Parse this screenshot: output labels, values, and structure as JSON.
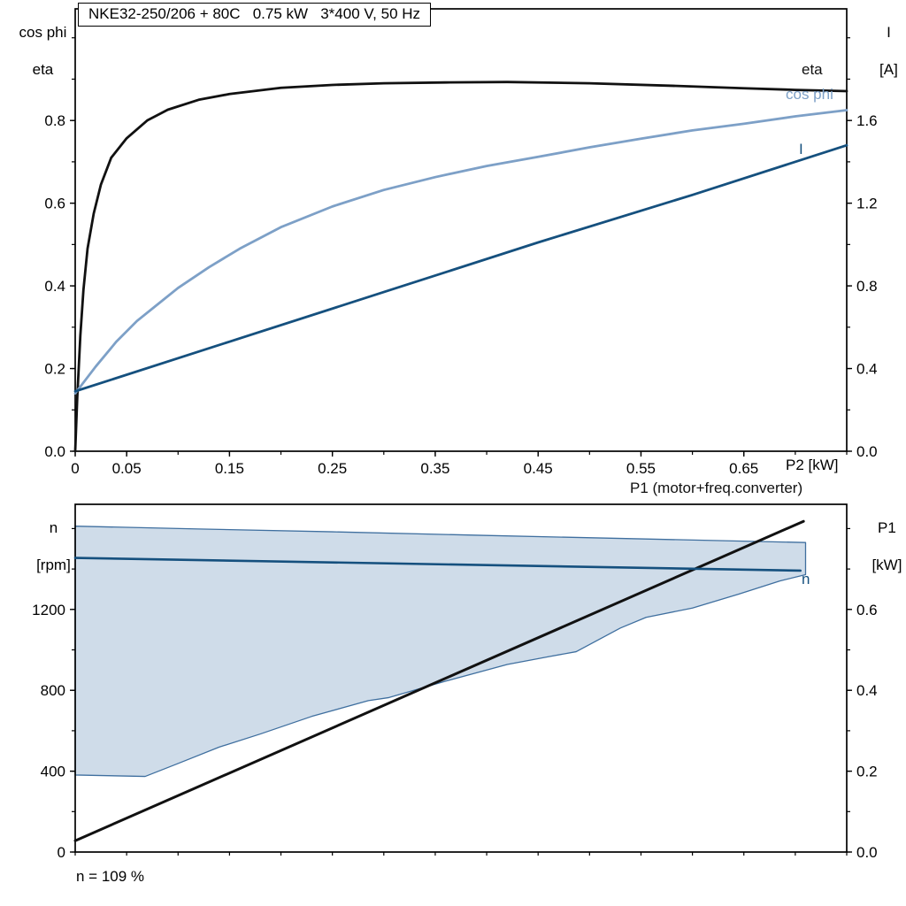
{
  "colors": {
    "black": "#111111",
    "dark_blue": "#15507e",
    "light_blue": "#7da0c7",
    "region_fill": "#cfdce9",
    "region_stroke": "#3f6f9f",
    "axis": "#000000",
    "background": "#ffffff"
  },
  "chart_data": [
    {
      "type": "line",
      "title": "NKE32-250/206 + 80C   0.75 kW   3*400 V, 50 Hz",
      "x_label": "P2 [kW]",
      "y_left_label": [
        "cos phi",
        "eta"
      ],
      "y_right_label": [
        "I",
        "[A]"
      ],
      "xlim": [
        0,
        0.75
      ],
      "ylim_left": [
        0,
        1.07
      ],
      "ylim_right": [
        0,
        2.14
      ],
      "x_minor_step": 0.05,
      "y_minor_left": 0.1,
      "y_minor_right": 0.2,
      "grid": false,
      "xticks": [
        {
          "v": 0,
          "label": "0"
        },
        {
          "v": 0.05,
          "label": "0.05"
        },
        {
          "v": 0.15,
          "label": "0.15"
        },
        {
          "v": 0.25,
          "label": "0.25"
        },
        {
          "v": 0.35,
          "label": "0.35"
        },
        {
          "v": 0.45,
          "label": "0.45"
        },
        {
          "v": 0.55,
          "label": "0.55"
        },
        {
          "v": 0.65,
          "label": "0.65"
        }
      ],
      "yticks_left": [
        {
          "v": 0,
          "label": "0.0"
        },
        {
          "v": 0.2,
          "label": "0.2"
        },
        {
          "v": 0.4,
          "label": "0.4"
        },
        {
          "v": 0.6,
          "label": "0.6"
        },
        {
          "v": 0.8,
          "label": "0.8"
        }
      ],
      "yticks_right": [
        {
          "v": 0,
          "label": "0.0"
        },
        {
          "v": 0.4,
          "label": "0.4"
        },
        {
          "v": 0.8,
          "label": "0.8"
        },
        {
          "v": 1.2,
          "label": "1.2"
        },
        {
          "v": 1.6,
          "label": "1.6"
        }
      ],
      "series": [
        {
          "name": "eta",
          "label": "eta",
          "axis": "left",
          "color": "#111111",
          "width": 2.8,
          "points": [
            [
              0,
              0
            ],
            [
              0.002,
              0.13
            ],
            [
              0.005,
              0.28
            ],
            [
              0.008,
              0.39
            ],
            [
              0.012,
              0.49
            ],
            [
              0.018,
              0.575
            ],
            [
              0.025,
              0.645
            ],
            [
              0.035,
              0.71
            ],
            [
              0.05,
              0.757
            ],
            [
              0.07,
              0.8
            ],
            [
              0.09,
              0.826
            ],
            [
              0.12,
              0.85
            ],
            [
              0.15,
              0.864
            ],
            [
              0.2,
              0.879
            ],
            [
              0.25,
              0.886
            ],
            [
              0.3,
              0.89
            ],
            [
              0.36,
              0.892
            ],
            [
              0.42,
              0.893
            ],
            [
              0.5,
              0.89
            ],
            [
              0.58,
              0.884
            ],
            [
              0.65,
              0.878
            ],
            [
              0.7,
              0.874
            ],
            [
              0.75,
              0.871
            ]
          ]
        },
        {
          "name": "cos phi",
          "label": "cos phi",
          "axis": "left",
          "color": "#7da0c7",
          "width": 2.8,
          "points": [
            [
              0,
              0.14
            ],
            [
              0.02,
              0.205
            ],
            [
              0.04,
              0.265
            ],
            [
              0.06,
              0.315
            ],
            [
              0.08,
              0.355
            ],
            [
              0.1,
              0.395
            ],
            [
              0.13,
              0.445
            ],
            [
              0.16,
              0.49
            ],
            [
              0.2,
              0.542
            ],
            [
              0.25,
              0.592
            ],
            [
              0.3,
              0.632
            ],
            [
              0.35,
              0.663
            ],
            [
              0.4,
              0.69
            ],
            [
              0.45,
              0.712
            ],
            [
              0.5,
              0.735
            ],
            [
              0.55,
              0.756
            ],
            [
              0.6,
              0.776
            ],
            [
              0.65,
              0.792
            ],
            [
              0.7,
              0.81
            ],
            [
              0.75,
              0.825
            ]
          ]
        },
        {
          "name": "I",
          "label": "I",
          "axis": "right",
          "color": "#15507e",
          "width": 2.8,
          "points": [
            [
              0,
              0.29
            ],
            [
              0.15,
              0.53
            ],
            [
              0.3,
              0.77
            ],
            [
              0.45,
              1.01
            ],
            [
              0.6,
              1.24
            ],
            [
              0.75,
              1.48
            ]
          ]
        }
      ]
    },
    {
      "type": "line",
      "title": "",
      "x_label": "",
      "y_left_label": [
        "n",
        "[rpm]"
      ],
      "y_right_label": [
        "P1",
        "[kW]"
      ],
      "xlim": [
        0,
        0.75
      ],
      "ylim_left": [
        0,
        1720
      ],
      "ylim_right": [
        0,
        0.86
      ],
      "x_minor_step": 0.05,
      "y_minor_left": 200,
      "y_minor_right": 0.1,
      "grid": false,
      "xticks": [],
      "yticks_left": [
        {
          "v": 0,
          "label": "0"
        },
        {
          "v": 400,
          "label": "400"
        },
        {
          "v": 800,
          "label": "800"
        },
        {
          "v": 1200,
          "label": "1200"
        }
      ],
      "yticks_right": [
        {
          "v": 0,
          "label": "0.0"
        },
        {
          "v": 0.2,
          "label": "0.2"
        },
        {
          "v": 0.4,
          "label": "0.4"
        },
        {
          "v": 0.6,
          "label": "0.6"
        }
      ],
      "series": [
        {
          "name": "P1",
          "label": "P1 (motor+freq.converter)",
          "axis": "right",
          "color": "#111111",
          "width": 3,
          "points": [
            [
              0,
              0.028
            ],
            [
              0.708,
              0.818
            ]
          ]
        },
        {
          "name": "n",
          "label": "n",
          "axis": "left",
          "color": "#15507e",
          "width": 2.6,
          "points": [
            [
              0,
              1455
            ],
            [
              0.705,
              1392
            ]
          ]
        }
      ],
      "region": {
        "name": "speed-control-range",
        "fill": "#cfdce9",
        "stroke": "#3f6f9f",
        "upper": [
          [
            0,
            1612
          ],
          [
            0.12,
            1598
          ],
          [
            0.25,
            1584
          ],
          [
            0.4,
            1566
          ],
          [
            0.55,
            1549
          ],
          [
            0.71,
            1531
          ]
        ],
        "lower": [
          [
            0,
            381
          ],
          [
            0.068,
            374
          ],
          [
            0.1,
            438
          ],
          [
            0.14,
            519
          ],
          [
            0.18,
            584
          ],
          [
            0.23,
            671
          ],
          [
            0.285,
            749
          ],
          [
            0.305,
            764
          ],
          [
            0.36,
            845
          ],
          [
            0.42,
            928
          ],
          [
            0.46,
            966
          ],
          [
            0.487,
            991
          ],
          [
            0.53,
            1108
          ],
          [
            0.555,
            1161
          ],
          [
            0.6,
            1207
          ],
          [
            0.645,
            1276
          ],
          [
            0.685,
            1341
          ],
          [
            0.71,
            1372
          ]
        ]
      },
      "annotation": "n = 109 %"
    }
  ]
}
